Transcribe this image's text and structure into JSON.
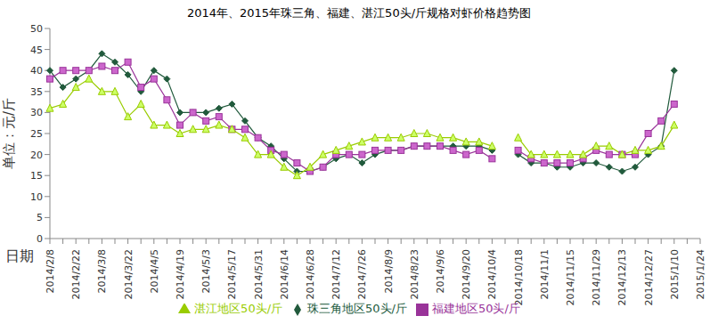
{
  "chart_data": {
    "type": "line",
    "title": "2014年、2015年珠三角、福建、湛江50头/斤规格对虾价格趋势图",
    "x_label": "日期",
    "y_label": "单位：元/斤",
    "categories": [
      "2014/2/8",
      null,
      "2014/2/22",
      null,
      "2014/3/8",
      null,
      "2014/3/22",
      null,
      "2014/4/5",
      null,
      "2014/4/19",
      null,
      "2014/5/3",
      null,
      "2014/5/17",
      null,
      "2014/5/31",
      null,
      "2014/6/14",
      null,
      "2014/6/28",
      null,
      "2014/7/12",
      null,
      "2014/7/26",
      null,
      "2014/8/9",
      null,
      "2014/8/23",
      null,
      "2014/9/6",
      null,
      "2014/9/20",
      null,
      "2014/10/4",
      null,
      "2014/10/18",
      null,
      "2014/11/1",
      null,
      "2014/11/15",
      null,
      "2014/11/29",
      null,
      "2014/12/13",
      null,
      "2014/12/27",
      null,
      "2015/1/10",
      null,
      "2015/1/24"
    ],
    "series": [
      {
        "name": "珠三角地区50头/斤",
        "color": "#215a3c",
        "marker": "diamond",
        "values": [
          40,
          36,
          38,
          40,
          44,
          42,
          39,
          35,
          40,
          38,
          30,
          30,
          30,
          31,
          32,
          28,
          24,
          22,
          19,
          16,
          16,
          17,
          19,
          20,
          18,
          20,
          21,
          21,
          22,
          22,
          22,
          22,
          22,
          22,
          21,
          null,
          20,
          18,
          18,
          17,
          17,
          18,
          18,
          17,
          16,
          17,
          20,
          22,
          40,
          null,
          null
        ]
      },
      {
        "name": "福建地区50头/斤",
        "color": "#993399",
        "marker": "square",
        "values": [
          38,
          40,
          40,
          40,
          41,
          40,
          42,
          36,
          38,
          33,
          27,
          30,
          28,
          29,
          26,
          26,
          24,
          21,
          20,
          18,
          16,
          17,
          20,
          20,
          20,
          21,
          21,
          21,
          22,
          22,
          22,
          21,
          20,
          21,
          19,
          null,
          21,
          19,
          18,
          18,
          18,
          19,
          21,
          20,
          20,
          20,
          25,
          28,
          32,
          null,
          null
        ]
      },
      {
        "name": "湛江地区50头/斤",
        "color": "#99cc00",
        "marker": "triangle",
        "values": [
          31,
          32,
          36,
          38,
          35,
          35,
          29,
          32,
          27,
          27,
          25,
          26,
          26,
          27,
          26,
          24,
          20,
          20,
          17,
          15,
          17,
          20,
          21,
          22,
          23,
          24,
          24,
          24,
          25,
          25,
          24,
          24,
          23,
          23,
          22,
          null,
          24,
          20,
          20,
          20,
          20,
          20,
          22,
          22,
          20,
          21,
          21,
          22,
          27,
          null,
          null
        ]
      }
    ],
    "ylim": [
      0,
      50
    ],
    "yticks": [
      0,
      5,
      10,
      15,
      20,
      25,
      30,
      35,
      40,
      45,
      50
    ],
    "grid": false,
    "legend": "bottom"
  }
}
